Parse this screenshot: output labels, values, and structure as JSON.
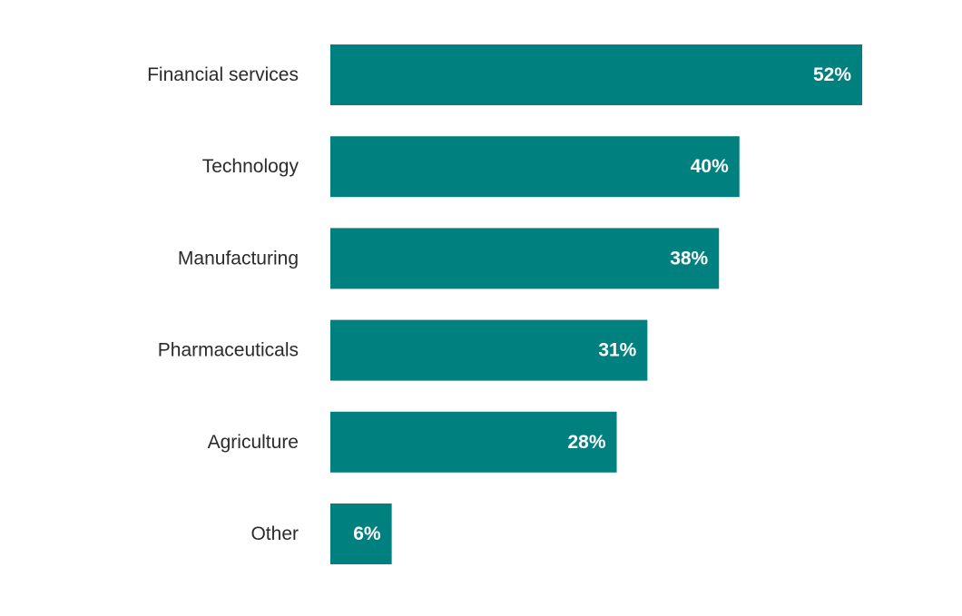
{
  "chart_data": {
    "type": "bar",
    "orientation": "horizontal",
    "categories": [
      "Financial services",
      "Technology",
      "Manufacturing",
      "Pharmaceuticals",
      "Agriculture",
      "Other"
    ],
    "values": [
      52,
      40,
      38,
      31,
      28,
      6
    ],
    "value_labels": [
      "52%",
      "40%",
      "38%",
      "31%",
      "28%",
      "6%"
    ],
    "unit": "%",
    "xlim": [
      0,
      52
    ],
    "grid": false,
    "legend": "none",
    "colors": {
      "bar": "#00807f",
      "value_label": "#ffffff",
      "category_label": "#2b2b2b",
      "background": "#ffffff"
    }
  }
}
